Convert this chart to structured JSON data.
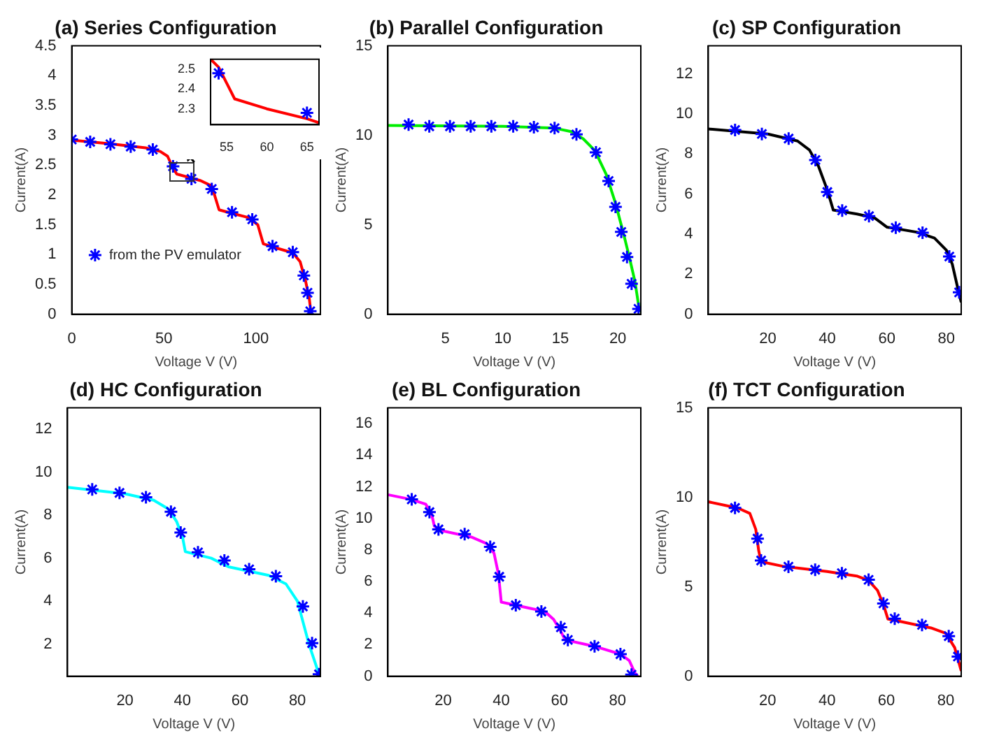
{
  "chart_data": [
    {
      "type": "line",
      "title": "(a) Series Configuration",
      "xlabel": "Voltage V (V)",
      "ylabel": "Current(A)",
      "xlim": [
        0,
        135
      ],
      "ylim": [
        0,
        4.5
      ],
      "xticks": [
        0,
        50,
        100
      ],
      "yticks": [
        0,
        0.5,
        1,
        1.5,
        2,
        2.5,
        3,
        3.5,
        4,
        4.5
      ],
      "legend": "left",
      "series": [
        {
          "type": "line",
          "color": "#ff0000",
          "marker": "none",
          "x": [
            0,
            20,
            40,
            48,
            52,
            55,
            57,
            70,
            76,
            78,
            80,
            86,
            96,
            101,
            104,
            110,
            120,
            124,
            127,
            129,
            130
          ],
          "values": [
            2.92,
            2.86,
            2.79,
            2.73,
            2.65,
            2.45,
            2.35,
            2.24,
            2.15,
            1.95,
            1.75,
            1.7,
            1.62,
            1.5,
            1.18,
            1.12,
            1.03,
            0.88,
            0.55,
            0.25,
            0
          ]
        },
        {
          "type": "scatter",
          "name": "from the PV emulator",
          "color": "#0000ff",
          "marker": "cross",
          "x": [
            0,
            10,
            21,
            32,
            44,
            55,
            65,
            76,
            87,
            98,
            109,
            120,
            126,
            128,
            129.5
          ],
          "values": [
            2.93,
            2.89,
            2.85,
            2.81,
            2.76,
            2.48,
            2.27,
            2.1,
            1.71,
            1.59,
            1.14,
            1.04,
            0.65,
            0.36,
            0.05
          ]
        }
      ]
    },
    {
      "type": "line",
      "title": "(b) Parallel Configuration",
      "xlabel": "Voltage V (V)",
      "ylabel": "Current(A)",
      "xlim": [
        0,
        22
      ],
      "ylim": [
        0,
        15
      ],
      "xticks": [
        5,
        10,
        15,
        20
      ],
      "yticks": [
        0,
        5,
        10,
        15
      ],
      "series": [
        {
          "type": "line",
          "color": "#00ee00",
          "marker": "none",
          "x": [
            0,
            10,
            14.5,
            16,
            17,
            18,
            19,
            19.8,
            20.5,
            21,
            21.5,
            21.9
          ],
          "values": [
            10.55,
            10.5,
            10.4,
            10.2,
            9.8,
            9.15,
            7.8,
            6.2,
            4.5,
            3.2,
            1.8,
            0.1
          ]
        },
        {
          "type": "scatter",
          "color": "#0000ff",
          "marker": "cross",
          "x": [
            1.8,
            3.6,
            5.4,
            7.2,
            9,
            10.9,
            12.7,
            14.5,
            16.4,
            18.1,
            19.2,
            19.8,
            20.3,
            20.8,
            21.2,
            21.8
          ],
          "values": [
            10.6,
            10.5,
            10.5,
            10.5,
            10.5,
            10.5,
            10.45,
            10.4,
            10.05,
            9.05,
            7.45,
            6,
            4.6,
            3.2,
            1.7,
            0.3
          ]
        }
      ]
    },
    {
      "type": "line",
      "title": "(c) SP Configuration",
      "xlabel": "Voltage V (V)",
      "ylabel": "Current(A)",
      "xlim": [
        0,
        85
      ],
      "ylim": [
        0,
        13.4
      ],
      "xticks": [
        20,
        40,
        60,
        80
      ],
      "yticks": [
        0,
        2,
        4,
        6,
        8,
        10,
        12
      ],
      "series": [
        {
          "type": "line",
          "color": "#000000",
          "marker": "none",
          "x": [
            0,
            20,
            30,
            34,
            37,
            40,
            42,
            50,
            56,
            60,
            70,
            76,
            80,
            82,
            84,
            85
          ],
          "values": [
            9.25,
            9,
            8.65,
            8.2,
            7.4,
            6.2,
            5.2,
            5,
            4.8,
            4.35,
            4.1,
            3.8,
            3.2,
            2.5,
            1.2,
            0.6
          ]
        },
        {
          "type": "scatter",
          "color": "#0000ff",
          "marker": "cross",
          "x": [
            9,
            18,
            27,
            36,
            40,
            45,
            54,
            63,
            72,
            81,
            84.3
          ],
          "values": [
            9.2,
            9,
            8.77,
            7.7,
            6.1,
            5.18,
            4.9,
            4.32,
            4.07,
            2.88,
            1.09
          ]
        }
      ]
    },
    {
      "type": "line",
      "title": "(d) HC Configuration",
      "xlabel": "Voltage V (V)",
      "ylabel": "Current(A)",
      "xlim": [
        0,
        88
      ],
      "ylim": [
        0.5,
        13
      ],
      "xticks": [
        20,
        40,
        60,
        80
      ],
      "yticks": [
        2,
        4,
        6,
        8,
        10,
        12
      ],
      "series": [
        {
          "type": "line",
          "color": "#00ffff",
          "marker": "none",
          "x": [
            0,
            20,
            30,
            35,
            38,
            40,
            41,
            50,
            56,
            70,
            76,
            80,
            82,
            84,
            86,
            87.5
          ],
          "values": [
            9.3,
            9,
            8.7,
            8.3,
            7.7,
            7,
            6.3,
            6,
            5.6,
            5.2,
            4.8,
            4,
            3,
            2,
            1.2,
            0.6
          ]
        },
        {
          "type": "scatter",
          "color": "#0000ff",
          "marker": "cross",
          "x": [
            8.6,
            18.1,
            27.3,
            36,
            39.4,
            45.4,
            54.6,
            63.2,
            72.5,
            81.9,
            85.1,
            87.5
          ],
          "values": [
            9.2,
            9.04,
            8.84,
            8.16,
            7.19,
            6.27,
            5.89,
            5.48,
            5.16,
            3.75,
            2.04,
            0.59
          ]
        }
      ]
    },
    {
      "type": "line",
      "title": "(e) BL Configuration",
      "xlabel": "Voltage V (V)",
      "ylabel": "Current(A)",
      "xlim": [
        1,
        88
      ],
      "ylim": [
        0,
        17
      ],
      "xticks": [
        20,
        40,
        60,
        80
      ],
      "yticks": [
        0,
        2,
        4,
        6,
        8,
        10,
        12,
        14,
        16
      ],
      "series": [
        {
          "type": "line",
          "color": "#ff00ff",
          "marker": "none",
          "x": [
            1,
            9,
            14,
            16,
            17,
            20,
            30,
            35,
            37.5,
            39,
            40,
            50,
            55,
            58,
            60,
            62,
            72,
            81,
            84,
            86,
            87
          ],
          "values": [
            11.5,
            11.2,
            10.9,
            10.3,
            9.5,
            9.2,
            8.8,
            8.4,
            7.8,
            6.5,
            4.7,
            4.3,
            4.1,
            3.6,
            3,
            2.3,
            1.9,
            1.4,
            1,
            0.2,
            0
          ]
        },
        {
          "type": "scatter",
          "color": "#0000ff",
          "marker": "cross",
          "x": [
            9.2,
            15.3,
            18.4,
            27.4,
            36.2,
            39.3,
            45,
            53.8,
            60.5,
            62.9,
            72.1,
            81,
            84.8
          ],
          "values": [
            11.2,
            10.4,
            9.3,
            9,
            8.2,
            6.3,
            4.5,
            4.1,
            3.1,
            2.3,
            1.9,
            1.4,
            0.1
          ]
        }
      ]
    },
    {
      "type": "line",
      "title": "(f) TCT Configuration",
      "xlabel": "Voltage V (V)",
      "ylabel": "Current(A)",
      "xlim": [
        0,
        85.2
      ],
      "ylim": [
        0,
        15
      ],
      "xticks": [
        20,
        40,
        60,
        80
      ],
      "yticks": [
        0,
        5,
        10,
        15
      ],
      "series": [
        {
          "type": "line",
          "color": "#ff0000",
          "marker": "none",
          "x": [
            0,
            10,
            14,
            16,
            17,
            17.8,
            25,
            40,
            50,
            54,
            57,
            59,
            60.5,
            65,
            75,
            80,
            83,
            85.2
          ],
          "values": [
            9.75,
            9.4,
            9.1,
            8.2,
            7,
            6.4,
            6.15,
            5.85,
            5.6,
            5.35,
            4.8,
            4,
            3.2,
            3.05,
            2.7,
            2.4,
            1.6,
            0.3
          ]
        },
        {
          "type": "scatter",
          "color": "#0000ff",
          "marker": "cross",
          "x": [
            9,
            16.6,
            17.8,
            27,
            36,
            45,
            54,
            59,
            62.8,
            72,
            81,
            84.1
          ],
          "values": [
            9.41,
            7.69,
            6.47,
            6.12,
            5.95,
            5.76,
            5.39,
            4.07,
            3.22,
            2.87,
            2.24,
            1.1
          ]
        }
      ]
    },
    {
      "type": "line",
      "xlim": [
        53,
        66.5
      ],
      "ylim": [
        2.22,
        2.55
      ],
      "xticks": [
        55,
        60,
        65
      ],
      "yticks": [
        2.3,
        2.4,
        2.5
      ],
      "series": [
        {
          "type": "line",
          "color": "#ff0000",
          "marker": "none",
          "x": [
            53,
            54,
            55,
            56,
            60,
            65,
            66.5
          ],
          "values": [
            2.55,
            2.51,
            2.43,
            2.35,
            2.3,
            2.25,
            2.23
          ]
        },
        {
          "type": "scatter",
          "color": "#0000ff",
          "marker": "cross",
          "x": [
            54,
            65
          ],
          "values": [
            2.48,
            2.28
          ]
        }
      ]
    }
  ]
}
